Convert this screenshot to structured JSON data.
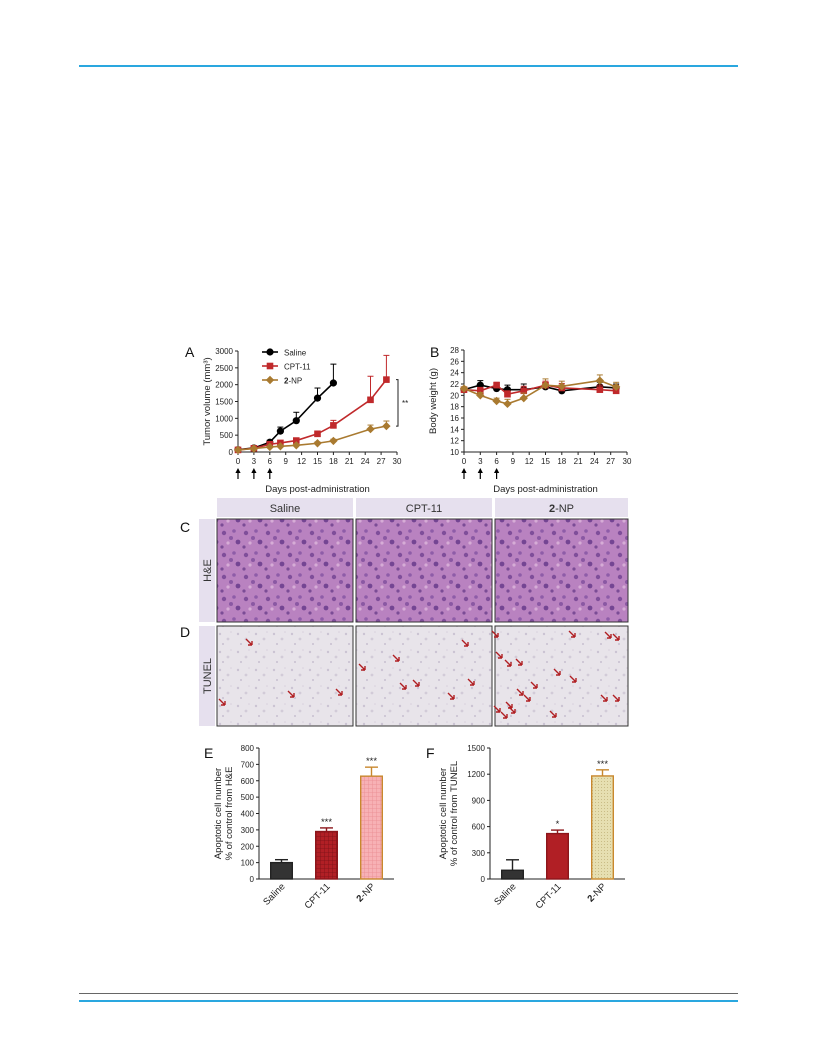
{
  "figure": {
    "panel_letters": {
      "a": "A",
      "b": "B",
      "c": "C",
      "d": "D",
      "e": "E",
      "f": "F"
    },
    "image_panels": {
      "columns": [
        "Saline",
        "CPT-11",
        "2-NP"
      ],
      "rows": [
        "H&E",
        "TUNEL"
      ]
    }
  },
  "chart_data": [
    {
      "panel": "A",
      "type": "line",
      "ylabel": "Tumor volume (mm³)",
      "xlabel": "Days post-administration",
      "xlim": [
        0,
        30
      ],
      "ylim": [
        0,
        3000
      ],
      "xticks": [
        0,
        3,
        6,
        9,
        12,
        15,
        18,
        21,
        24,
        27,
        30
      ],
      "yticks": [
        0,
        500,
        1000,
        1500,
        2000,
        2500,
        3000
      ],
      "dosing_days": [
        0,
        3,
        6
      ],
      "legend": {
        "position": "top-left"
      },
      "annotation": "**",
      "series": [
        {
          "name": "Saline",
          "color": "#000000",
          "marker": "circle",
          "x": [
            0,
            3,
            6,
            8,
            11,
            15,
            18
          ],
          "y": [
            68,
            120,
            290,
            620,
            930,
            1600,
            2050
          ],
          "err": [
            20,
            30,
            60,
            120,
            250,
            300,
            560
          ]
        },
        {
          "name": "CPT-11",
          "color": "#c0292b",
          "marker": "square",
          "x": [
            0,
            3,
            6,
            8,
            11,
            15,
            18,
            25,
            28
          ],
          "y": [
            62,
            110,
            230,
            270,
            340,
            540,
            790,
            1550,
            2150
          ],
          "err": [
            15,
            20,
            40,
            40,
            50,
            80,
            150,
            700,
            720
          ]
        },
        {
          "name": "2-NP",
          "color": "#a97a30",
          "marker": "diamond",
          "x": [
            0,
            3,
            6,
            8,
            11,
            15,
            18,
            25,
            28
          ],
          "y": [
            60,
            100,
            150,
            170,
            200,
            260,
            330,
            680,
            770
          ],
          "err": [
            10,
            15,
            20,
            20,
            30,
            40,
            50,
            120,
            150
          ]
        }
      ]
    },
    {
      "panel": "B",
      "type": "line",
      "ylabel": "Body weight (g)",
      "xlabel": "Days post-administration",
      "xlim": [
        0,
        30
      ],
      "ylim": [
        10,
        28
      ],
      "xticks": [
        0,
        3,
        6,
        9,
        12,
        15,
        18,
        21,
        24,
        27,
        30
      ],
      "yticks": [
        10,
        12,
        14,
        16,
        18,
        20,
        22,
        24,
        26,
        28
      ],
      "dosing_days": [
        0,
        3,
        6
      ],
      "series": [
        {
          "name": "Saline",
          "color": "#000000",
          "marker": "circle",
          "x": [
            0,
            3,
            6,
            8,
            11,
            15,
            18,
            25,
            28
          ],
          "y": [
            21,
            21.8,
            21.2,
            21,
            21,
            21.5,
            20.8,
            21.5,
            21.3
          ],
          "err": [
            0.4,
            0.8,
            0.6,
            0.8,
            1,
            0.7,
            1,
            0.8,
            0.7
          ]
        },
        {
          "name": "CPT-11",
          "color": "#c0292b",
          "marker": "square",
          "x": [
            0,
            3,
            6,
            8,
            11,
            15,
            18,
            25,
            28
          ],
          "y": [
            21,
            20.8,
            21.8,
            20.2,
            20.8,
            21.8,
            21.3,
            21,
            20.8
          ],
          "err": [
            0.3,
            0.6,
            0.5,
            0.6,
            0.8,
            0.7,
            0.8,
            0.8,
            1
          ]
        },
        {
          "name": "2-NP",
          "color": "#a97a30",
          "marker": "diamond",
          "x": [
            0,
            3,
            6,
            8,
            11,
            15,
            18,
            25,
            28
          ],
          "y": [
            21.2,
            20,
            19,
            18.5,
            19.5,
            21.8,
            21.6,
            22.6,
            21.5
          ],
          "err": [
            0.3,
            0.5,
            0.5,
            0.8,
            0.9,
            1.1,
            0.9,
            1,
            0.8
          ]
        }
      ]
    },
    {
      "panel": "E",
      "type": "bar",
      "ylabel": "Apoptotic cell number\n% of control from H&E",
      "categories": [
        "Saline",
        "CPT-11",
        "2-NP"
      ],
      "values": [
        100,
        290,
        628
      ],
      "errors": [
        18,
        22,
        55
      ],
      "significance": [
        "",
        "***",
        "***"
      ],
      "ylim": [
        0,
        800
      ],
      "yticks": [
        0,
        100,
        200,
        300,
        400,
        500,
        600,
        700,
        800
      ],
      "colors": {
        "Saline": "#333333",
        "CPT-11": "#b11f25",
        "2-NP": "#f7b1b5"
      }
    },
    {
      "panel": "F",
      "type": "bar",
      "ylabel": "Apoptotic cell number\n% of control from TUNEL",
      "categories": [
        "Saline",
        "CPT-11",
        "2-NP"
      ],
      "values": [
        100,
        520,
        1180
      ],
      "errors": [
        120,
        40,
        70
      ],
      "significance": [
        "",
        "*",
        "***"
      ],
      "ylim": [
        0,
        1500
      ],
      "yticks": [
        0,
        300,
        600,
        900,
        1200,
        1500
      ],
      "colors": {
        "Saline": "#333333",
        "CPT-11": "#b11f25",
        "2-NP": "#e3dcaa"
      }
    }
  ]
}
